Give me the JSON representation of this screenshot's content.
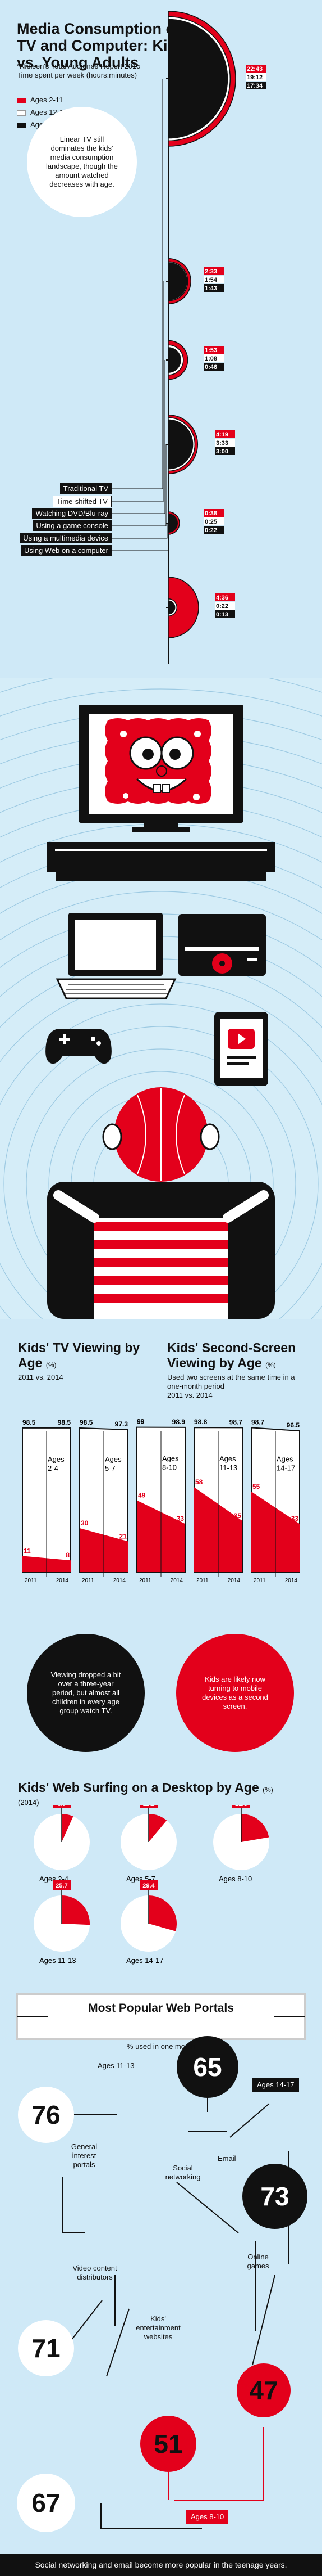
{
  "header": {
    "title": "Media Consumption on TV and Computer: Kids vs. Young Adults",
    "subtitle": "*Nielsen's Total Audience Report 2015 Time spent per week (hours:minutes)",
    "legend": [
      {
        "label": "Ages 2-11",
        "color": "#e3001b"
      },
      {
        "label": "Ages 12-17",
        "color": "#ffffff"
      },
      {
        "label": "Ages 18-24",
        "color": "#111111"
      }
    ],
    "note": "Linear TV still dominates the kids' media consumption landscape, though the amount watched decreases with age."
  },
  "usage": {
    "devices": [
      "Traditional TV",
      "Time-shifted TV",
      "Watching DVD/Blu-ray",
      "Using a game console",
      "Using a multimedia device",
      "Using Web on a computer"
    ],
    "rows": [
      {
        "device": "Traditional TV",
        "values": [
          "22:43",
          "19:12",
          "17:34"
        ]
      },
      {
        "device": "Time-shifted TV",
        "values": [
          "2:33",
          "1:54",
          "1:43"
        ]
      },
      {
        "device": "Watching DVD/Blu-ray",
        "values": [
          "1:53",
          "1:08",
          "0:46"
        ]
      },
      {
        "device": "Using a game console",
        "values": [
          "4:19",
          "3:33",
          "3:00"
        ]
      },
      {
        "device": "Using a multimedia device",
        "values": [
          "0:38",
          "0:25",
          "0:22"
        ]
      },
      {
        "device": "Using Web on a computer",
        "values": [
          "4:36",
          "0:22",
          "0:13"
        ]
      }
    ]
  },
  "tv_section": {
    "title": "Kids' TV Viewing by Age",
    "title_unit": "(%)",
    "subtitle": "2011 vs. 2014",
    "note": "Viewing dropped a bit over a three-year period, but almost all children in every age group watch TV."
  },
  "second_screen": {
    "title": "Kids' Second-Screen Viewing by Age",
    "title_unit": "(%)",
    "subtitle": "Used two screens at the same time in a one-month period",
    "years": "2011 vs. 2014",
    "note": "Kids are likely now turning to mobile devices as a second screen."
  },
  "web_section": {
    "title": "Kids' Web Surfing on a Desktop by Age",
    "title_unit": "(%)",
    "subtitle": "(2014)"
  },
  "portals": {
    "title": "Most Popular Web Portals",
    "subtitle": "% used in one month",
    "group_labels": [
      "Ages 11-13",
      "Ages 14-17",
      "Ages 8-10"
    ],
    "items": [
      {
        "label": "General interest portals",
        "value": 76
      },
      {
        "label": "General interest portals",
        "value": 71
      },
      {
        "label": "Social networking",
        "value": 65
      },
      {
        "label": "Email",
        "value": 73
      },
      {
        "label": "Video content distributors",
        "value": 67
      },
      {
        "label": "Online games",
        "value": 47
      },
      {
        "label": "Kids' entertainment websites",
        "value": 51
      }
    ],
    "labels": {
      "general": "General interest portals",
      "social": "Social networking",
      "email": "Email",
      "video": "Video content distributors",
      "games": "Online games",
      "kids": "Kids' entertainment websites"
    }
  },
  "footer": "Social networking and email become more popular in the teenage years.",
  "chart_data": [
    {
      "type": "bar",
      "title": "Kids' TV Viewing by Age (%)",
      "subtitle": "2011 vs. 2014",
      "categories": [
        "Ages 2-4",
        "Ages 5-7",
        "Ages 8-10",
        "Ages 11-13",
        "Ages 14-17"
      ],
      "series": [
        {
          "name": "2011",
          "values": [
            98.5,
            98.5,
            99,
            98.8,
            98.7
          ]
        },
        {
          "name": "2014",
          "values": [
            98.5,
            97.3,
            98.9,
            98.7,
            96.5
          ]
        }
      ],
      "ylim": [
        0,
        100
      ]
    },
    {
      "type": "bar",
      "title": "Kids' Second-Screen Viewing by Age (%)",
      "subtitle": "Used two screens at the same time in a one-month period 2011 vs. 2014",
      "categories": [
        "Ages 2-4",
        "Ages 5-7",
        "Ages 8-10",
        "Ages 11-13",
        "Ages 14-17"
      ],
      "series": [
        {
          "name": "2011",
          "values": [
            11,
            30,
            49,
            58,
            55
          ]
        },
        {
          "name": "2014",
          "values": [
            8,
            21,
            33,
            35,
            33
          ]
        }
      ],
      "ylim": [
        0,
        100
      ]
    },
    {
      "type": "pie",
      "title": "Kids' Web Surfing on a Desktop by Age (%)",
      "subtitle": "(2014)",
      "categories": [
        "Ages 2-4",
        "Ages 5-7",
        "Ages 8-10",
        "Ages 11-13",
        "Ages 14-17"
      ],
      "values": [
        6.7,
        11.1,
        22.3,
        25.7,
        29.4
      ]
    }
  ]
}
